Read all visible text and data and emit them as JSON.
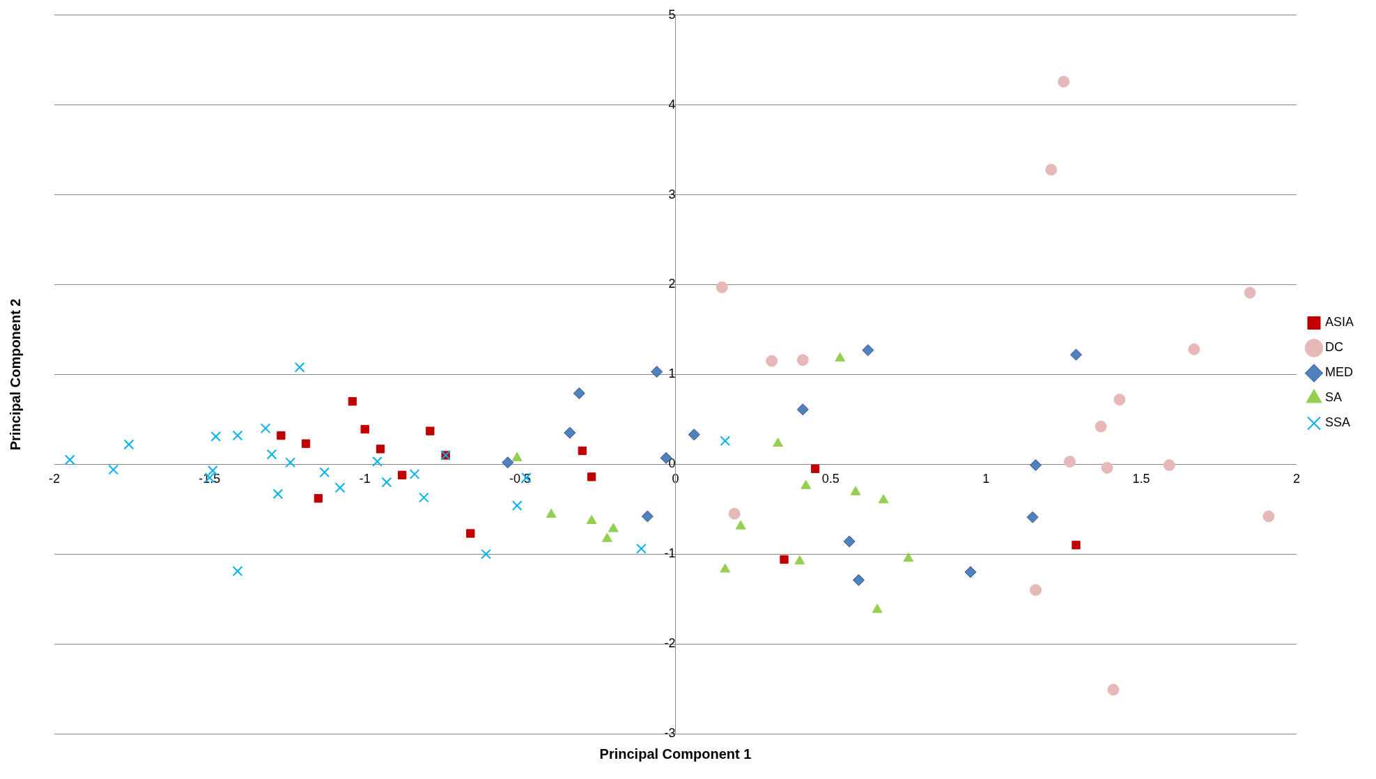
{
  "chart_data": {
    "type": "scatter",
    "xlabel": "Principal Component 1",
    "ylabel": "Principal Component 2",
    "xlim": [
      -2,
      2
    ],
    "xticks": [
      -2,
      -1.5,
      -1,
      -0.5,
      0,
      0.5,
      1,
      1.5,
      2
    ],
    "ylim": [
      -3,
      5
    ],
    "yticks": [
      -3,
      -2,
      -1,
      0,
      1,
      2,
      3,
      4,
      5
    ],
    "grid": "y",
    "legend": "right",
    "series": [
      {
        "name": "ASIA",
        "color": "#c00000",
        "marker": "square",
        "x": [
          -1.27,
          -1.19,
          -1.15,
          -1.04,
          -1.0,
          -0.95,
          -0.88,
          -0.79,
          -0.74,
          -0.66,
          -0.3,
          -0.27,
          0.35,
          0.45,
          1.29
        ],
        "values": [
          0.32,
          0.23,
          -0.38,
          0.7,
          0.39,
          0.17,
          -0.12,
          0.37,
          0.1,
          -0.77,
          0.15,
          -0.14,
          -1.06,
          -0.05,
          -0.9
        ]
      },
      {
        "name": "DC",
        "color": "#e6b9b8",
        "marker": "circle",
        "x": [
          0.15,
          0.31,
          0.41,
          0.19,
          1.25,
          1.21,
          1.85,
          1.67,
          1.43,
          1.37,
          1.27,
          1.39,
          1.59,
          1.91,
          1.16,
          1.41
        ],
        "values": [
          1.97,
          1.15,
          1.16,
          -0.55,
          4.26,
          3.28,
          1.91,
          1.28,
          0.72,
          0.42,
          0.03,
          -0.04,
          -0.01,
          -0.58,
          -1.4,
          -2.51
        ]
      },
      {
        "name": "MED",
        "color": "#4f81bd",
        "marker": "diamond",
        "x": [
          -0.06,
          -0.31,
          -0.34,
          -0.54,
          -0.03,
          0.06,
          -0.09,
          0.62,
          0.41,
          0.56,
          0.59,
          0.95,
          1.16,
          1.15,
          1.29
        ],
        "values": [
          1.03,
          0.79,
          0.35,
          0.02,
          0.07,
          0.33,
          -0.58,
          1.27,
          0.61,
          -0.86,
          -1.29,
          -1.2,
          -0.01,
          -0.59,
          1.22
        ]
      },
      {
        "name": "SA",
        "color": "#92d050",
        "marker": "triangle",
        "x": [
          -0.51,
          -0.4,
          -0.27,
          -0.22,
          -0.2,
          0.16,
          0.21,
          0.33,
          0.4,
          0.42,
          0.53,
          0.58,
          0.67,
          0.65,
          0.75
        ],
        "values": [
          0.07,
          -0.56,
          -0.63,
          -0.83,
          -0.72,
          -1.17,
          -0.69,
          0.23,
          -1.08,
          -0.24,
          1.18,
          -0.31,
          -0.4,
          -1.62,
          -1.05
        ]
      },
      {
        "name": "SSA",
        "color": "#00b0f0",
        "marker": "cross",
        "x": [
          -1.95,
          -1.81,
          -1.76,
          -1.48,
          -1.49,
          -1.5,
          -1.41,
          -1.41,
          -1.32,
          -1.3,
          -1.28,
          -1.24,
          -1.21,
          -1.13,
          -1.08,
          -0.96,
          -0.93,
          -0.84,
          -0.81,
          -0.74,
          -0.61,
          -0.51,
          -0.48,
          -0.11,
          0.16
        ],
        "values": [
          0.05,
          -0.06,
          0.22,
          0.31,
          -0.07,
          -0.15,
          0.32,
          -1.19,
          0.4,
          0.11,
          -0.33,
          0.02,
          1.08,
          -0.09,
          -0.26,
          0.03,
          -0.2,
          -0.11,
          -0.37,
          0.1,
          -1.0,
          -0.46,
          -0.15,
          -0.94,
          0.26
        ]
      }
    ]
  }
}
